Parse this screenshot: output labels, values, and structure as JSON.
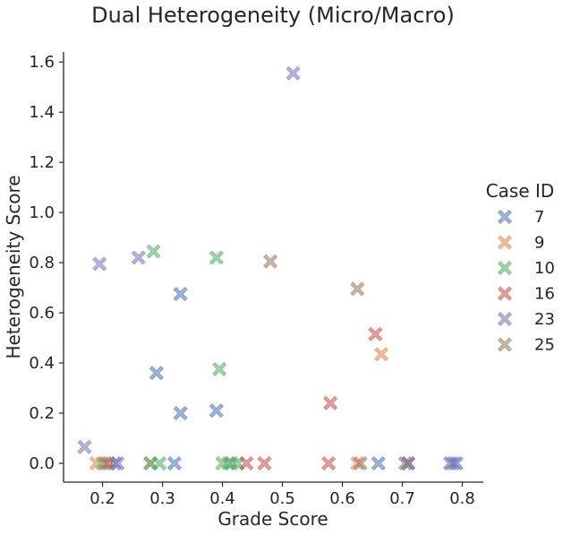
{
  "chart_data": {
    "type": "scatter",
    "title": "Dual Heterogeneity (Micro/Macro)",
    "xlabel": "Grade Score",
    "ylabel": "Heterogeneity Score",
    "xlim": [
      0.135,
      0.835
    ],
    "ylim": [
      -0.075,
      1.64
    ],
    "xticks": [
      "0.2",
      "0.3",
      "0.4",
      "0.5",
      "0.6",
      "0.7",
      "0.8"
    ],
    "yticks": [
      "0.0",
      "0.2",
      "0.4",
      "0.6",
      "0.8",
      "1.0",
      "1.2",
      "1.4",
      "1.6"
    ],
    "grid": false,
    "legend_title": "Case ID",
    "legend_position": "right",
    "marker": "X",
    "series": [
      {
        "name": "7",
        "color": "#4c72b0",
        "points": [
          [
            0.29,
            0.36
          ],
          [
            0.33,
            0.675
          ],
          [
            0.33,
            0.2
          ],
          [
            0.39,
            0.21
          ],
          [
            0.22,
            0.0
          ],
          [
            0.32,
            0.0
          ],
          [
            0.66,
            0.0
          ],
          [
            0.71,
            0.0
          ],
          [
            0.78,
            0.0
          ],
          [
            0.79,
            0.0
          ]
        ]
      },
      {
        "name": "9",
        "color": "#dd8452",
        "points": [
          [
            0.665,
            0.435
          ],
          [
            0.19,
            0.0
          ],
          [
            0.205,
            0.0
          ],
          [
            0.28,
            0.0
          ],
          [
            0.625,
            0.0
          ]
        ]
      },
      {
        "name": "10",
        "color": "#55a868",
        "points": [
          [
            0.285,
            0.845
          ],
          [
            0.39,
            0.82
          ],
          [
            0.395,
            0.375
          ],
          [
            0.2,
            0.0
          ],
          [
            0.28,
            0.0
          ],
          [
            0.295,
            0.0
          ],
          [
            0.4,
            0.0
          ],
          [
            0.41,
            0.0
          ],
          [
            0.415,
            0.0
          ],
          [
            0.425,
            0.0
          ]
        ]
      },
      {
        "name": "16",
        "color": "#c44e52",
        "points": [
          [
            0.58,
            0.24
          ],
          [
            0.655,
            0.515
          ],
          [
            0.21,
            0.0
          ],
          [
            0.44,
            0.0
          ],
          [
            0.47,
            0.0
          ],
          [
            0.577,
            0.0
          ]
        ]
      },
      {
        "name": "23",
        "color": "#8172b3",
        "points": [
          [
            0.518,
            1.555
          ],
          [
            0.26,
            0.82
          ],
          [
            0.195,
            0.795
          ],
          [
            0.17,
            0.065
          ],
          [
            0.225,
            0.0
          ],
          [
            0.71,
            0.0
          ],
          [
            0.785,
            0.0
          ]
        ]
      },
      {
        "name": "25",
        "color": "#937860",
        "points": [
          [
            0.48,
            0.805
          ],
          [
            0.625,
            0.695
          ],
          [
            0.63,
            0.0
          ],
          [
            0.705,
            0.0
          ]
        ]
      }
    ]
  }
}
